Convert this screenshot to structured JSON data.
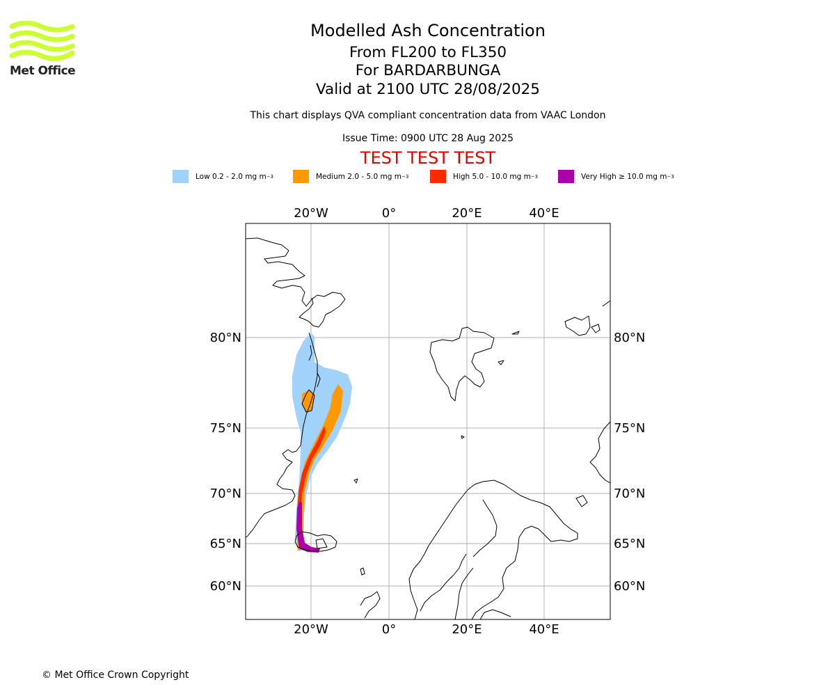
{
  "brand": {
    "logo_text": "Met Office",
    "logo_color": "#ccff33"
  },
  "title": {
    "line1": "Modelled Ash Concentration",
    "line2": "From FL200 to FL350",
    "line3": "For BARDARBUNGA",
    "line4": "Valid at 2100 UTC 28/08/2025"
  },
  "subtitle": "This chart displays QVA compliant concentration data from VAAC London",
  "issue_time": "Issue Time: 0900 UTC 28 Aug 2025",
  "test_banner": "TEST TEST TEST",
  "legend": [
    {
      "label": "Low 0.2 - 2.0 mg m",
      "sup": "−3",
      "color": "#a0d2fa"
    },
    {
      "label": "Medium 2.0 - 5.0 mg m",
      "sup": "−3",
      "color": "#ff9900"
    },
    {
      "label": "High 5.0 - 10.0 mg m",
      "sup": "−3",
      "color": "#ff2a00"
    },
    {
      "label": "Very High  ≥  10.0 mg m",
      "sup": "−3",
      "color": "#aa00aa"
    }
  ],
  "map": {
    "lon_ticks": [
      "20°W",
      "0°",
      "20°E",
      "40°E"
    ],
    "lat_ticks": [
      "80°N",
      "75°N",
      "70°N",
      "65°N",
      "60°N"
    ],
    "gridline_color": "#b0b0b0",
    "coastline_color": "#000000"
  },
  "copyright": "© Met Office Crown Copyright"
}
